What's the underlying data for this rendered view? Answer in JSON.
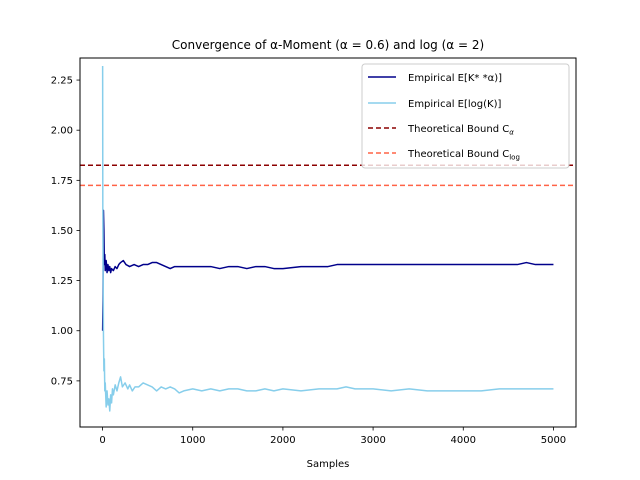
{
  "chart_data": {
    "type": "line",
    "title": "Convergence of α-Moment (α = 0.6) and log (α = 2)",
    "xlabel": "Samples",
    "ylabel": "",
    "xlim": [
      -250,
      5250
    ],
    "ylim": [
      0.52,
      2.36
    ],
    "xticks": [
      0,
      1000,
      2000,
      3000,
      4000,
      5000
    ],
    "xtick_labels": [
      "0",
      "1000",
      "2000",
      "3000",
      "4000",
      "5000"
    ],
    "yticks": [
      0.75,
      1.0,
      1.25,
      1.5,
      1.75,
      2.0,
      2.25
    ],
    "ytick_labels": [
      "0.75",
      "1.00",
      "1.25",
      "1.50",
      "1.75",
      "2.00",
      "2.25"
    ],
    "grid": false,
    "legend_position": "top-right",
    "series": [
      {
        "name": "Empirical E[K* *α)]",
        "legend_html": "Empirical E[K* *α)]",
        "color": "#00008b",
        "style": "solid",
        "x": [
          1,
          5,
          10,
          15,
          20,
          25,
          30,
          40,
          50,
          60,
          70,
          80,
          90,
          100,
          120,
          140,
          160,
          180,
          200,
          230,
          260,
          300,
          350,
          400,
          450,
          500,
          550,
          600,
          650,
          700,
          750,
          800,
          900,
          1000,
          1100,
          1200,
          1300,
          1400,
          1500,
          1600,
          1700,
          1800,
          1900,
          2000,
          2200,
          2400,
          2500,
          2600,
          2800,
          3000,
          3200,
          3300,
          3500,
          3700,
          3900,
          4000,
          4200,
          4400,
          4600,
          4700,
          4800,
          5000
        ],
        "y": [
          1.0,
          1.15,
          1.6,
          1.5,
          1.33,
          1.38,
          1.3,
          1.35,
          1.29,
          1.33,
          1.3,
          1.32,
          1.29,
          1.31,
          1.3,
          1.32,
          1.31,
          1.33,
          1.34,
          1.35,
          1.33,
          1.32,
          1.33,
          1.32,
          1.33,
          1.33,
          1.34,
          1.34,
          1.33,
          1.32,
          1.31,
          1.32,
          1.32,
          1.32,
          1.32,
          1.32,
          1.31,
          1.32,
          1.32,
          1.31,
          1.32,
          1.32,
          1.31,
          1.31,
          1.32,
          1.32,
          1.32,
          1.33,
          1.33,
          1.33,
          1.33,
          1.33,
          1.33,
          1.33,
          1.33,
          1.33,
          1.33,
          1.33,
          1.33,
          1.34,
          1.33,
          1.33
        ]
      },
      {
        "name": "Empirical E[log(K)]",
        "legend_html": "Empirical E[log(K)]",
        "color": "#87ceeb",
        "style": "solid",
        "x": [
          1,
          3,
          6,
          10,
          15,
          20,
          25,
          30,
          40,
          50,
          60,
          70,
          80,
          90,
          100,
          110,
          120,
          140,
          160,
          180,
          200,
          220,
          250,
          280,
          300,
          330,
          360,
          400,
          450,
          500,
          550,
          600,
          650,
          700,
          750,
          800,
          850,
          900,
          1000,
          1100,
          1200,
          1300,
          1400,
          1500,
          1600,
          1700,
          1800,
          1900,
          2000,
          2200,
          2400,
          2500,
          2600,
          2700,
          2800,
          3000,
          3200,
          3400,
          3600,
          3800,
          4000,
          4200,
          4400,
          4500,
          4600,
          4800,
          5000
        ],
        "y": [
          2.32,
          1.6,
          1.35,
          0.98,
          0.8,
          0.86,
          0.7,
          0.74,
          0.62,
          0.7,
          0.63,
          0.66,
          0.6,
          0.68,
          0.64,
          0.71,
          0.68,
          0.73,
          0.7,
          0.74,
          0.77,
          0.72,
          0.74,
          0.71,
          0.73,
          0.7,
          0.72,
          0.72,
          0.74,
          0.73,
          0.72,
          0.7,
          0.72,
          0.71,
          0.72,
          0.71,
          0.69,
          0.7,
          0.71,
          0.7,
          0.71,
          0.7,
          0.71,
          0.71,
          0.7,
          0.7,
          0.71,
          0.7,
          0.71,
          0.7,
          0.71,
          0.71,
          0.71,
          0.72,
          0.71,
          0.71,
          0.7,
          0.71,
          0.7,
          0.7,
          0.7,
          0.7,
          0.71,
          0.71,
          0.71,
          0.71,
          0.71
        ]
      }
    ],
    "reference_lines": [
      {
        "name": "Theoretical Bound Cα",
        "legend_main": "Theoretical Bound C",
        "legend_sub": "α",
        "y": 1.825,
        "color": "#8b0000",
        "style": "dashed"
      },
      {
        "name": "Theoretical Bound Clog",
        "legend_main": "Theoretical Bound C",
        "legend_sub": "log",
        "y": 1.725,
        "color": "#ff6347",
        "style": "dashed"
      }
    ]
  }
}
